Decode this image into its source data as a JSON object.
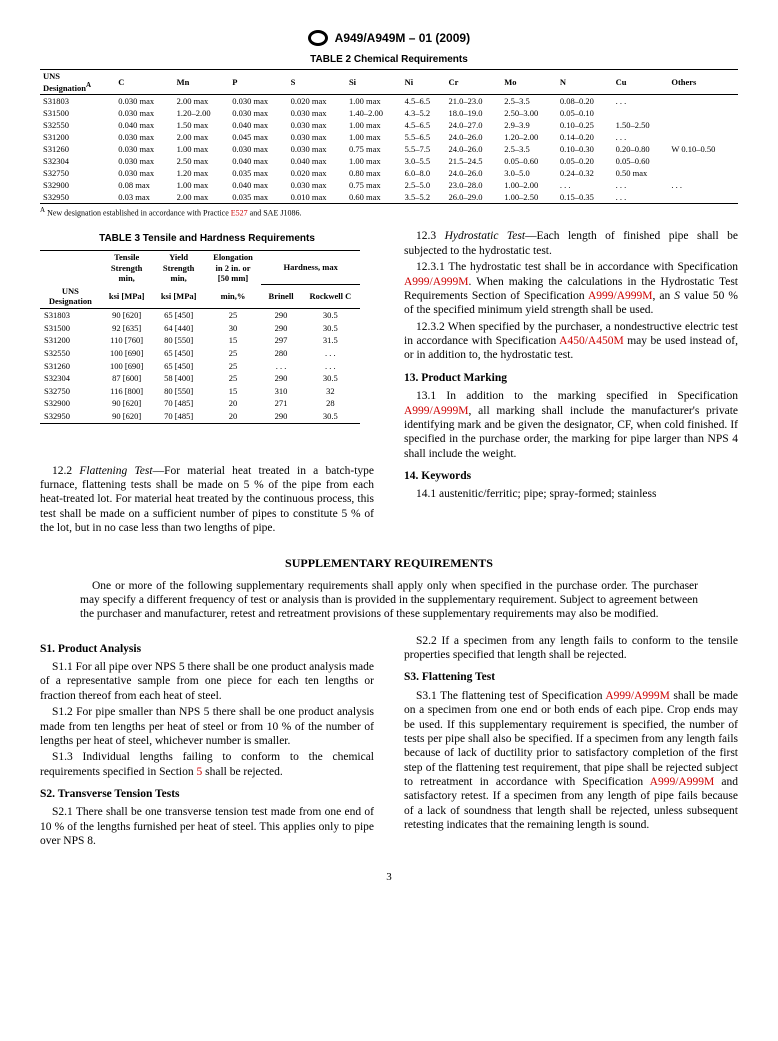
{
  "header": {
    "spec": "A949/A949M – 01 (2009)"
  },
  "table2": {
    "title": "TABLE 2 Chemical Requirements",
    "cols": [
      "UNS Designation",
      "C",
      "Mn",
      "P",
      "S",
      "Si",
      "Ni",
      "Cr",
      "Mo",
      "N",
      "Cu",
      "Others"
    ],
    "sup": "A",
    "rows": [
      [
        "S31803",
        "0.030 max",
        "2.00 max",
        "0.030 max",
        "0.020 max",
        "1.00 max",
        "4.5–6.5",
        "21.0–23.0",
        "2.5–3.5",
        "0.08–0.20",
        ". . .",
        ""
      ],
      [
        "S31500",
        "0.030 max",
        "1.20–2.00",
        "0.030 max",
        "0.030 max",
        "1.40–2.00",
        "4.3–5.2",
        "18.0–19.0",
        "2.50–3.00",
        "0.05–0.10",
        "",
        ""
      ],
      [
        "S32550",
        "0.040 max",
        "1.50 max",
        "0.040 max",
        "0.030 max",
        "1.00 max",
        "4.5–6.5",
        "24.0–27.0",
        "2.9–3.9",
        "0.10–0.25",
        "1.50–2.50",
        ""
      ],
      [
        "S31200",
        "0.030 max",
        "2.00 max",
        "0.045 max",
        "0.030 max",
        "1.00 max",
        "5.5–6.5",
        "24.0–26.0",
        "1.20–2.00",
        "0.14–0.20",
        ". . .",
        ""
      ],
      [
        "S31260",
        "0.030 max",
        "1.00 max",
        "0.030 max",
        "0.030 max",
        "0.75 max",
        "5.5–7.5",
        "24.0–26.0",
        "2.5–3.5",
        "0.10–0.30",
        "0.20–0.80",
        "W 0.10–0.50"
      ],
      [
        "S32304",
        "0.030 max",
        "2.50 max",
        "0.040 max",
        "0.040 max",
        "1.00 max",
        "3.0–5.5",
        "21.5–24.5",
        "0.05–0.60",
        "0.05–0.20",
        "0.05–0.60",
        ""
      ],
      [
        "S32750",
        "0.030 max",
        "1.20 max",
        "0.035 max",
        "0.020 max",
        "0.80 max",
        "6.0–8.0",
        "24.0–26.0",
        "3.0–5.0",
        "0.24–0.32",
        "0.50 max",
        ""
      ],
      [
        "S32900",
        "0.08   max",
        "1.00 max",
        "0.040 max",
        "0.030 max",
        "0.75 max",
        "2.5–5.0",
        "23.0–28.0",
        "1.00–2.00",
        ". . .",
        ". . .",
        ". . ."
      ],
      [
        "S32950",
        "0.03   max",
        "2.00 max",
        "0.035 max",
        "0.010 max",
        "0.60 max",
        "3.5–5.2",
        "26.0–29.0",
        "1.00–2.50",
        "0.15–0.35",
        ". . .",
        ""
      ]
    ],
    "footnote": " New designation established in accordance with Practice ",
    "footnote_link": "E527",
    "footnote_tail": " and SAE J1086."
  },
  "table3": {
    "title": "TABLE 3 Tensile and Hardness Requirements",
    "head1": [
      "UNS Designation",
      "Tensile Strength min,",
      "Yield Strength min,",
      "Elongation in 2 in. or [50 mm]",
      "Hardness, max"
    ],
    "head2": [
      "",
      "ksi [MPa]",
      "ksi [MPa]",
      "min,%",
      "Brinell",
      "Rockwell C"
    ],
    "rows": [
      [
        "S31803",
        "90 [620]",
        "65 [450]",
        "25",
        "290",
        "30.5"
      ],
      [
        "S31500",
        "92 [635]",
        "64 [440]",
        "30",
        "290",
        "30.5"
      ],
      [
        "S31200",
        "110 [760]",
        "80 [550]",
        "15",
        "297",
        "31.5"
      ],
      [
        "S32550",
        "100 [690]",
        "65 [450]",
        "25",
        "280",
        ". . ."
      ],
      [
        "S31260",
        "100 [690]",
        "65 [450]",
        "25",
        ". . .",
        ". . ."
      ],
      [
        "S32304",
        "87 [600]",
        "58 [400]",
        "25",
        "290",
        "30.5"
      ],
      [
        "S32750",
        "116 [800]",
        "80 [550]",
        "15",
        "310",
        "32"
      ],
      [
        "S32900",
        "90 [620]",
        "70 [485]",
        "20",
        "271",
        "28"
      ],
      [
        "S32950",
        "90 [620]",
        "70 [485]",
        "20",
        "290",
        "30.5"
      ]
    ]
  },
  "col_left": {
    "p12_2_lead": "12.2 ",
    "p12_2_ital": "Flattening Test",
    "p12_2": "—For material heat treated in a batch-type furnace, flattening tests shall be made on 5 % of the pipe from each heat-treated lot. For material heat treated by the continuous process, this test shall be made on a sufficient number of pipes to constitute 5 % of the lot, but in no case less than two lengths of pipe."
  },
  "col_right": {
    "p12_3_lead": "12.3 ",
    "p12_3_ital": "Hydrostatic Test",
    "p12_3": "—Each length of finished pipe shall be subjected to the hydrostatic test.",
    "p12_3_1a": "12.3.1 The hydrostatic test shall be in accordance with Specification ",
    "p12_3_1_link1": "A999/A999M",
    "p12_3_1b": ". When making the calculations in the Hydrostatic Test Requirements Section of Specification ",
    "p12_3_1_link2": "A999/A999M",
    "p12_3_1c": ", an ",
    "p12_3_1_S": "S",
    "p12_3_1d": " value 50 % of the specified minimum yield strength shall be used.",
    "p12_3_2a": "12.3.2 When specified by the purchaser, a nondestructive electric test in accordance with Specification ",
    "p12_3_2_link": "A450/A450M",
    "p12_3_2b": " may be used instead of, or in addition to, the hydrostatic test.",
    "s13_head": "13. Product Marking",
    "p13_1a": "13.1 In addition to the marking specified in Specification ",
    "p13_1_link": "A999/A999M",
    "p13_1b": ", all marking shall include the manufacturer's private identifying mark and be given the designator, CF, when cold finished. If specified in the purchase order, the marking for pipe larger than NPS 4 shall include the weight.",
    "s14_head": "14. Keywords",
    "p14_1": "14.1 austenitic/ferritic; pipe; spray-formed; stainless"
  },
  "supp": {
    "title": "SUPPLEMENTARY REQUIREMENTS",
    "intro": "One or more of the following supplementary requirements shall apply only when specified in the purchase order. The purchaser may specify a different frequency of test or analysis than is provided in the supplementary requirement. Subject to agreement between the purchaser and manufacturer, retest and retreatment provisions of these supplementary requirements may also be modified."
  },
  "supp_left": {
    "s1_head": "S1. Product Analysis",
    "s1_1": "S1.1 For all pipe over NPS 5 there shall be one product analysis made of a representative sample from one piece for each ten lengths or fraction thereof from each heat of steel.",
    "s1_2": "S1.2 For pipe smaller than NPS 5 there shall be one product analysis made from ten lengths per heat of steel or from 10 % of the number of lengths per heat of steel, whichever number is smaller.",
    "s1_3a": "S1.3 Individual lengths failing to conform to the chemical requirements specified in Section ",
    "s1_3_link": "5",
    "s1_3b": " shall be rejected.",
    "s2_head": "S2. Transverse Tension Tests",
    "s2_1": "S2.1 There shall be one transverse tension test made from one end of 10 % of the lengths furnished per heat of steel. This applies only to pipe over NPS 8."
  },
  "supp_right": {
    "s2_2": "S2.2 If a specimen from any length fails to conform to the tensile properties specified that length shall be rejected.",
    "s3_head": "S3. Flattening Test",
    "s3_1a": "S3.1 The flattening test of Specification ",
    "s3_1_link1": "A999/A999M",
    "s3_1b": " shall be made on a specimen from one end or both ends of each pipe. Crop ends may be used. If this supplementary requirement is specified, the number of tests per pipe shall also be specified. If a specimen from any length fails because of lack of ductility prior to satisfactory completion of the first step of the flattening test requirement, that pipe shall be rejected subject to retreatment in accordance with Specification ",
    "s3_1_link2": "A999/A999M",
    "s3_1c": " and satisfactory retest. If a specimen from any length of pipe fails because of a lack of soundness that length shall be rejected, unless subsequent retesting indicates that the remaining length is sound."
  },
  "page_num": "3"
}
